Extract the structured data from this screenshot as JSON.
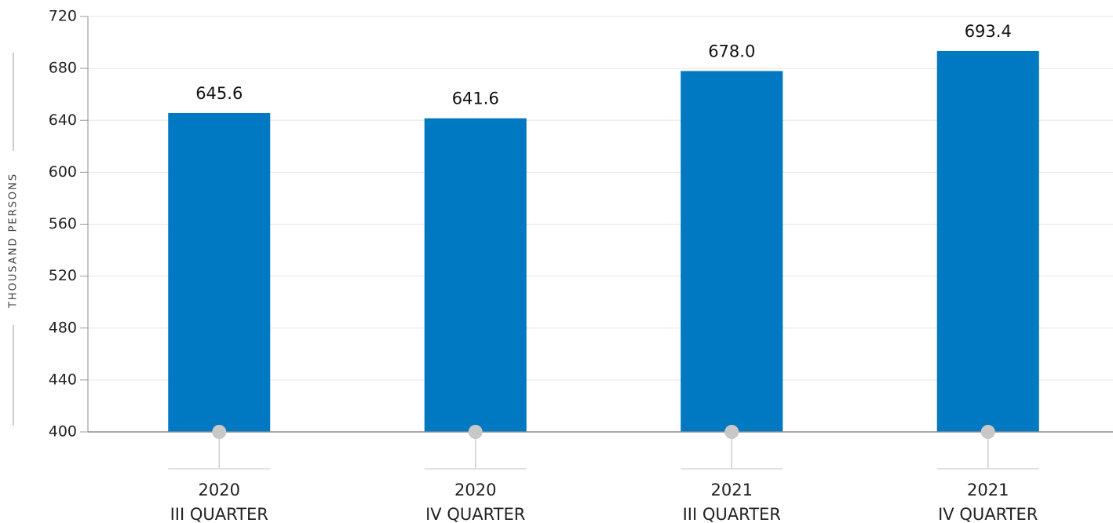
{
  "chart_data": {
    "type": "bar",
    "ylabel": "THOUSAND PERSONS",
    "ylim": [
      400,
      720
    ],
    "yticks": [
      "400",
      "440",
      "480",
      "520",
      "560",
      "600",
      "640",
      "680",
      "720"
    ],
    "grid": true,
    "bar_color": "#0179c2",
    "categories": [
      {
        "year": "2020",
        "quarter": "III QUARTER"
      },
      {
        "year": "2020",
        "quarter": "IV QUARTER"
      },
      {
        "year": "2021",
        "quarter": "III QUARTER"
      },
      {
        "year": "2021",
        "quarter": "IV QUARTER"
      }
    ],
    "values": [
      645.6,
      641.6,
      678.0,
      693.4
    ],
    "data_labels": [
      "645.6",
      "641.6",
      "678.0",
      "693.4"
    ]
  }
}
